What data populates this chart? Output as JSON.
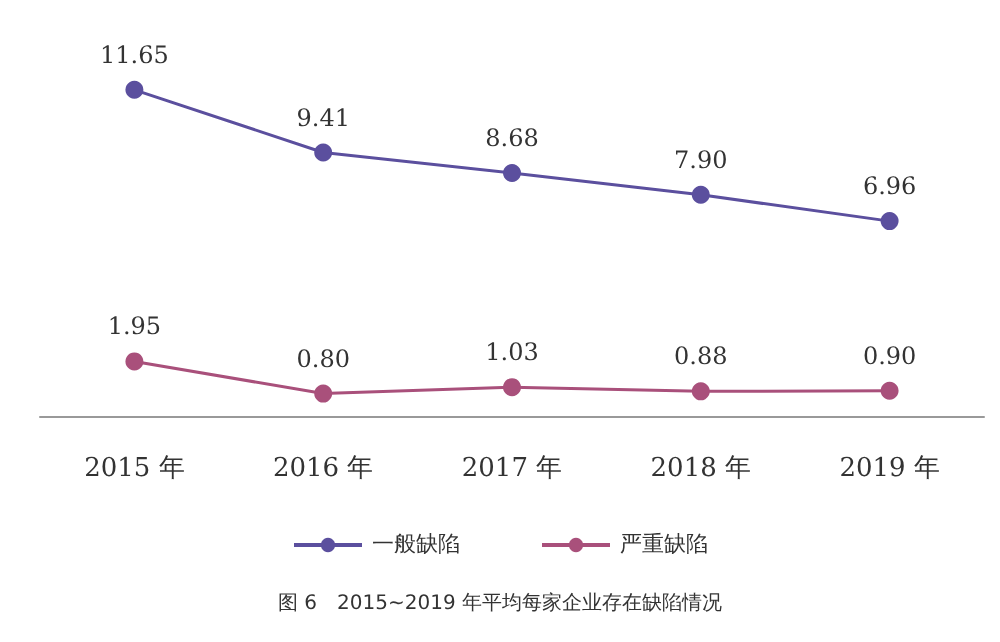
{
  "chart_data": {
    "type": "line",
    "categories": [
      "2015 年",
      "2016 年",
      "2017 年",
      "2018 年",
      "2019 年"
    ],
    "series": [
      {
        "name": "一般缺陷",
        "color": "#5b4f9e",
        "values": [
          11.65,
          9.41,
          8.68,
          7.9,
          6.96
        ],
        "value_labels": [
          "11.65",
          "9.41",
          "8.68",
          "7.90",
          "6.96"
        ]
      },
      {
        "name": "严重缺陷",
        "color": "#a9507b",
        "values": [
          1.95,
          0.8,
          1.03,
          0.88,
          0.9
        ],
        "value_labels": [
          "1.95",
          "0.80",
          "1.03",
          "0.88",
          "0.90"
        ]
      }
    ],
    "legend": "bottom",
    "marker": "circle",
    "line_style": "solid",
    "grid": false,
    "annotations": [
      "图 6　2015~2019 年平均每家企业存在缺陷情况"
    ]
  }
}
